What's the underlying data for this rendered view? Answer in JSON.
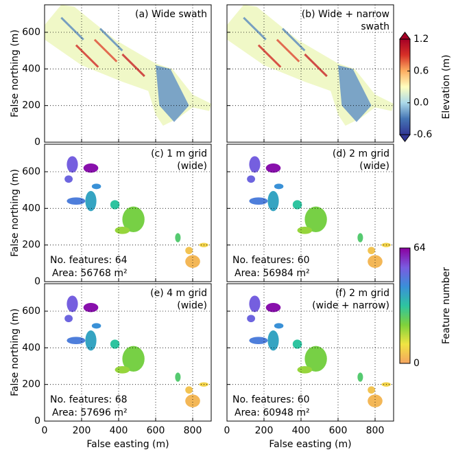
{
  "chart_data": [
    {
      "type": "map",
      "image": "elevation",
      "title": [
        "(a) Wide swath"
      ],
      "xlim": [
        0,
        900
      ],
      "xticks": [
        0,
        200,
        400,
        600,
        800
      ],
      "ylim": [
        0,
        750
      ],
      "yticks": [
        0,
        200,
        400,
        600
      ],
      "ylabel": "False northing (m)"
    },
    {
      "type": "map",
      "image": "elevation",
      "title": [
        "(b) Wide + narrow",
        "swath"
      ],
      "xlim": [
        0,
        900
      ],
      "xticks": [
        0,
        200,
        400,
        600,
        800
      ],
      "ylim": [
        0,
        750
      ],
      "yticks": [
        0,
        200,
        400,
        600
      ]
    },
    {
      "type": "map",
      "image": "features",
      "title": [
        "(c) 1 m grid",
        "(wide)"
      ],
      "annotations": [
        "No. features: 64",
        "Area: 56768 m²"
      ],
      "xlim": [
        0,
        900
      ],
      "xticks": [
        0,
        200,
        400,
        600,
        800
      ],
      "ylim": [
        0,
        750
      ],
      "yticks": [
        0,
        200,
        400,
        600
      ],
      "ylabel": "False northing (m)"
    },
    {
      "type": "map",
      "image": "features",
      "title": [
        "(d) 2 m grid",
        "(wide)"
      ],
      "annotations": [
        "No. features: 60",
        "Area: 56984 m²"
      ],
      "xlim": [
        0,
        900
      ],
      "xticks": [
        0,
        200,
        400,
        600,
        800
      ],
      "ylim": [
        0,
        750
      ],
      "yticks": [
        0,
        200,
        400,
        600
      ]
    },
    {
      "type": "map",
      "image": "features",
      "title": [
        "(e) 4 m grid",
        "(wide)"
      ],
      "annotations": [
        "No. features: 68",
        "Area: 57696 m²"
      ],
      "xlim": [
        0,
        900
      ],
      "xticks": [
        0,
        200,
        400,
        600,
        800
      ],
      "ylim": [
        0,
        750
      ],
      "yticks": [
        0,
        200,
        400,
        600
      ],
      "ylabel": "False northing (m)",
      "xlabel": "False easting (m)"
    },
    {
      "type": "map",
      "image": "features",
      "title": [
        "(f) 2 m grid",
        "(wide + narrow)"
      ],
      "annotations": [
        "No. features: 60",
        "Area: 60948 m²"
      ],
      "xlim": [
        0,
        900
      ],
      "xticks": [
        0,
        200,
        400,
        600,
        800
      ],
      "ylim": [
        0,
        750
      ],
      "yticks": [
        0,
        200,
        400,
        600
      ],
      "xlabel": "False easting (m)"
    },
    {
      "type": "colorbar",
      "label": "Elevation (m)",
      "extend": true,
      "ylim": [
        -0.6,
        1.2
      ],
      "yticks": [
        1.2,
        0.6,
        {
          "value": 0,
          "label": "0.0"
        },
        -0.6
      ],
      "colors": [
        "#313695",
        "#4575b4",
        "#abd9e9",
        "#ffffbf",
        "#fdae61",
        "#d73027",
        "#a50026"
      ]
    },
    {
      "type": "colorbar",
      "label": "Feature number",
      "ylim": [
        0,
        64
      ],
      "yticks": [
        0,
        64
      ],
      "colors": [
        "#f4a460",
        "#f0e442",
        "#7fd13b",
        "#2ec4a0",
        "#3a8fd9",
        "#7a5be0",
        "#8b00a0"
      ]
    }
  ]
}
